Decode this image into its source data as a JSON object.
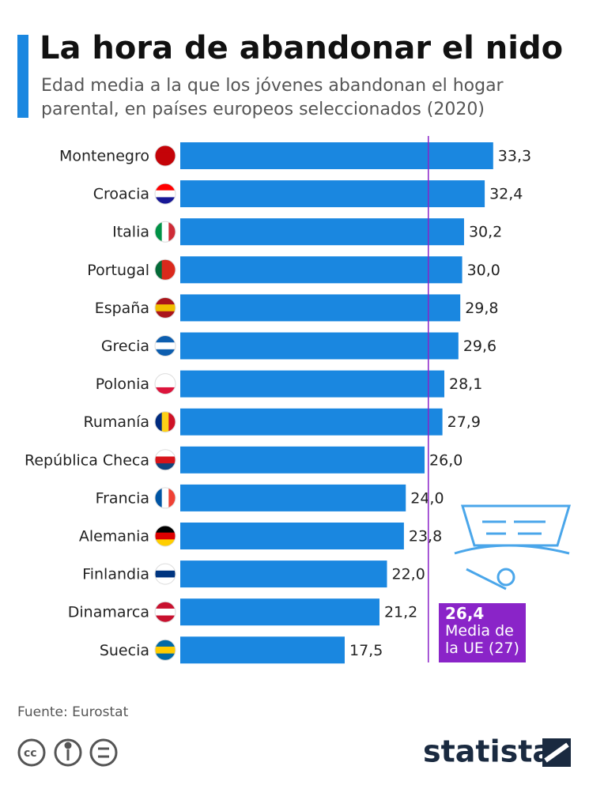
{
  "chart_data": {
    "type": "bar",
    "orientation": "horizontal",
    "title": "La hora de abandonar el nido",
    "subtitle": "Edad media a la que los jóvenes abandonan el hogar parental, en países europeos seleccionados (2020)",
    "categories": [
      "Montenegro",
      "Croacia",
      "Italia",
      "Portugal",
      "España",
      "Grecia",
      "Polonia",
      "Rumanía",
      "República Checa",
      "Francia",
      "Alemania",
      "Finlandia",
      "Dinamarca",
      "Suecia"
    ],
    "values": [
      33.3,
      32.4,
      30.2,
      30.0,
      29.8,
      29.6,
      28.1,
      27.9,
      26.0,
      24.0,
      23.8,
      22.0,
      21.2,
      17.5
    ],
    "value_labels": [
      "33,3",
      "32,4",
      "30,2",
      "30,0",
      "29,8",
      "29,6",
      "28,1",
      "27,9",
      "26,0",
      "24,0",
      "23,8",
      "22,0",
      "21,2",
      "17,5"
    ],
    "color": "#1a87e0",
    "xlim": [
      0,
      35
    ],
    "reference_line": {
      "value": 26.4,
      "value_label": "26,4",
      "label": "Media de la UE (27)",
      "color": "#8a24c8"
    },
    "source": "Fuente: Eurostat",
    "brand": "statista"
  }
}
